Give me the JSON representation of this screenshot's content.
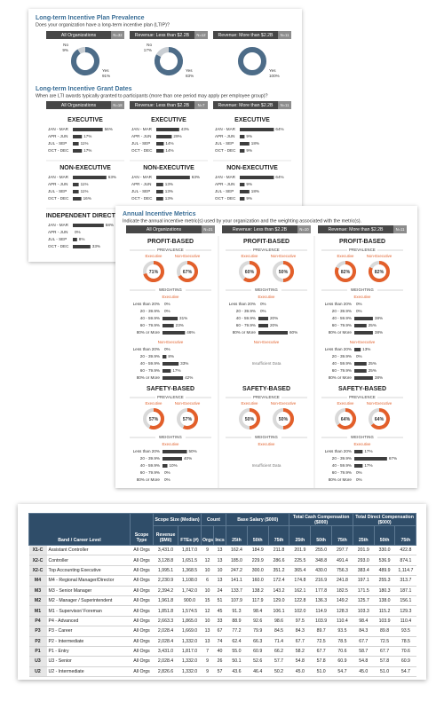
{
  "ltip": {
    "title": "Long-term Incentive Plan Prevalence",
    "question": "Does your organization have a long-term incentive plan (LTIP)?",
    "segments": [
      {
        "name": "All Organizations",
        "n": "N=32",
        "labels": [
          "Yes",
          "No"
        ],
        "values": [
          91,
          9
        ],
        "value_labels": [
          "91%",
          "9%"
        ]
      },
      {
        "name": "Revenue: Less than $2.2B",
        "n": "N=12",
        "labels": [
          "Yes",
          "No"
        ],
        "values": [
          83,
          17
        ],
        "value_labels": [
          "83%",
          "17%"
        ]
      },
      {
        "name": "Revenue: More than $2.2B",
        "n": "N=11",
        "labels": [
          "Yes"
        ],
        "values": [
          100
        ],
        "value_labels": [
          "100%"
        ]
      }
    ]
  },
  "grant": {
    "title": "Long-term Incentive Grant Dates",
    "question": "When are LTI awards typically granted to participants (more than one period may apply per employee group)?",
    "segments": [
      {
        "name": "All Organizations",
        "n": "N=18"
      },
      {
        "name": "Revenue: Less than $2.2B",
        "n": "N=7"
      },
      {
        "name": "Revenue: More than $2.2B",
        "n": "N=11"
      }
    ],
    "periods": [
      "JAN - MAR",
      "APR - JUN",
      "JUL - SEP",
      "OCT - DEC"
    ],
    "groups": [
      {
        "name": "EXECUTIVE",
        "panels": [
          {
            "values": [
              56,
              17,
              11,
              17
            ],
            "value_labels": [
              "56%",
              "17%",
              "11%",
              "17%"
            ]
          },
          {
            "values": [
              43,
              29,
              14,
              14
            ],
            "value_labels": [
              "43%",
              "29%",
              "14%",
              "14%"
            ]
          },
          {
            "values": [
              64,
              9,
              18,
              9
            ],
            "value_labels": [
              "64%",
              "9%",
              "18%",
              "9%"
            ]
          }
        ]
      },
      {
        "name": "NON-EXECUTIVE",
        "panels": [
          {
            "values": [
              63,
              11,
              11,
              16
            ],
            "value_labels": [
              "63%",
              "11%",
              "11%",
              "16%"
            ]
          },
          {
            "values": [
              63,
              13,
              13,
              13
            ],
            "value_labels": [
              "63%",
              "13%",
              "13%",
              "13%"
            ]
          },
          {
            "values": [
              64,
              9,
              18,
              9
            ],
            "value_labels": [
              "64%",
              "9%",
              "18%",
              "9%"
            ]
          }
        ]
      },
      {
        "name": "INDEPENDENT DIRECTOR",
        "panels": [
          {
            "values": [
              58,
              0,
              8,
              33
            ],
            "value_labels": [
              "58%",
              "0%",
              "8%",
              "33%"
            ]
          }
        ]
      }
    ]
  },
  "aim": {
    "title": "Annual Incentive Metrics",
    "question": "Indicate the annual incentive metric(s) used by your organization and the weighting associated with the metric(s).",
    "segments": [
      {
        "name": "All Organizations",
        "n": "N=21"
      },
      {
        "name": "Revenue: Less than $2.2B",
        "n": "N=10"
      },
      {
        "name": "Revenue: More than $2.2B",
        "n": "N=11"
      }
    ],
    "prevalence_label": "PREVALENCE",
    "weighting_label": "WEIGHTING",
    "roles": [
      "Executive",
      "Non-Executive"
    ],
    "ranges": [
      "Less than 20%",
      "20 - 39.9%",
      "40 - 59.9%",
      "60 - 79.9%",
      "80% or More"
    ],
    "insufficient": "Insufficient Data",
    "metrics": [
      {
        "name": "PROFIT-BASED",
        "panels": [
          {
            "prevalence": [
              71,
              67
            ],
            "prevalence_labels": [
              "71%",
              "67%"
            ],
            "weighting": [
              {
                "values": [
                  0,
                  0,
                  31,
                  23,
                  46
                ],
                "value_labels": [
                  "0%",
                  "0%",
                  "31%",
                  "23%",
                  "46%"
                ]
              },
              {
                "values": [
                  0,
                  8,
                  33,
                  17,
                  42
                ],
                "value_labels": [
                  "0%",
                  "8%",
                  "33%",
                  "17%",
                  "42%"
                ]
              }
            ]
          },
          {
            "prevalence": [
              60,
              50
            ],
            "prevalence_labels": [
              "60%",
              "50%"
            ],
            "weighting": [
              {
                "values": [
                  0,
                  0,
                  20,
                  20,
                  60
                ],
                "value_labels": [
                  "0%",
                  "0%",
                  "20%",
                  "20%",
                  "60%"
                ]
              },
              null
            ]
          },
          {
            "prevalence": [
              82,
              82
            ],
            "prevalence_labels": [
              "82%",
              "82%"
            ],
            "weighting": [
              {
                "values": [
                  0,
                  0,
                  38,
                  25,
                  38
                ],
                "value_labels": [
                  "0%",
                  "0%",
                  "38%",
                  "25%",
                  "38%"
                ]
              },
              {
                "values": [
                  13,
                  0,
                  25,
                  25,
                  38
                ],
                "value_labels": [
                  "13%",
                  "0%",
                  "25%",
                  "25%",
                  "38%"
                ]
              }
            ]
          }
        ]
      },
      {
        "name": "SAFETY-BASED",
        "panels": [
          {
            "prevalence": [
              57,
              57
            ],
            "prevalence_labels": [
              "57%",
              "57%"
            ],
            "weighting": [
              {
                "values": [
                  50,
                  40,
                  10,
                  0,
                  0
                ],
                "value_labels": [
                  "50%",
                  "40%",
                  "10%",
                  "0%",
                  "0%"
                ]
              }
            ]
          },
          {
            "prevalence": [
              50,
              50
            ],
            "prevalence_labels": [
              "50%",
              "50%"
            ],
            "weighting": [
              null
            ]
          },
          {
            "prevalence": [
              64,
              64
            ],
            "prevalence_labels": [
              "64%",
              "64%"
            ],
            "weighting": [
              {
                "values": [
                  17,
                  67,
                  17,
                  0,
                  0
                ],
                "value_labels": [
                  "17%",
                  "67%",
                  "17%",
                  "0%",
                  "0%"
                ]
              }
            ]
          }
        ]
      }
    ]
  },
  "table": {
    "header_groups": [
      "Scope Size (Median)",
      "Count",
      "Base Salary ($000)",
      "Total Cash Compensation ($000)",
      "Total Direct Compensation ($000)"
    ],
    "columns": [
      "Band / Career Level",
      "Scope Type",
      "Revenue ($Mil)",
      "FTEs (#)",
      "Orgs",
      "Incs",
      "25th",
      "50th",
      "75th",
      "25th",
      "50th",
      "75th",
      "25th",
      "50th",
      "75th"
    ],
    "groups": [
      [
        [
          "X1-C",
          "Assistant Controller",
          "All Orgs",
          "3,431.0",
          "1,817.0",
          "9",
          "13",
          "162.4",
          "184.9",
          "211.8",
          "201.9",
          "255.0",
          "297.7",
          "201.9",
          "330.0",
          "422.8"
        ],
        [
          "X2-C",
          "Controller",
          "All Orgs",
          "3,128.8",
          "1,651.5",
          "12",
          "13",
          "185.0",
          "229.9",
          "286.6",
          "225.5",
          "348.8",
          "491.4",
          "293.0",
          "536.9",
          "874.1"
        ],
        [
          "X2-C",
          "Top Accounting Executive",
          "All Orgs",
          "1,995.1",
          "1,368.5",
          "10",
          "10",
          "247.2",
          "300.0",
          "351.2",
          "365.4",
          "430.0",
          "756.3",
          "383.4",
          "489.9",
          "1,114.7"
        ]
      ],
      [
        [
          "M4",
          "M4 - Regional Manager/Director",
          "All Orgs",
          "2,230.9",
          "1,108.0",
          "6",
          "13",
          "141.1",
          "160.0",
          "172.4",
          "174.8",
          "216.9",
          "241.8",
          "197.1",
          "255.3",
          "313.7"
        ],
        [
          "M3",
          "M3 - Senior Manager",
          "All Orgs",
          "2,394.2",
          "1,742.0",
          "10",
          "24",
          "133.7",
          "138.2",
          "143.2",
          "162.1",
          "177.8",
          "182.5",
          "171.5",
          "180.3",
          "187.1"
        ],
        [
          "M2",
          "M2 - Manager / Superintendent",
          "All Orgs",
          "1,961.8",
          "900.0",
          "15",
          "51",
          "107.9",
          "117.9",
          "129.0",
          "122.8",
          "136.3",
          "149.2",
          "125.7",
          "138.0",
          "156.1"
        ],
        [
          "M1",
          "M1 - Supervisor/ Foreman",
          "All Orgs",
          "1,851.8",
          "1,574.5",
          "12",
          "45",
          "91.3",
          "98.4",
          "106.1",
          "102.0",
          "114.9",
          "128.3",
          "103.3",
          "115.2",
          "129.3"
        ]
      ],
      [
        [
          "P4",
          "P4 - Advanced",
          "All Orgs",
          "2,663.3",
          "1,865.0",
          "10",
          "33",
          "88.9",
          "92.6",
          "98.6",
          "97.5",
          "103.9",
          "110.4",
          "98.4",
          "103.9",
          "110.4"
        ],
        [
          "P3",
          "P3 - Career",
          "All Orgs",
          "2,028.4",
          "1,669.0",
          "13",
          "67",
          "77.2",
          "79.9",
          "84.5",
          "84.3",
          "89.7",
          "93.5",
          "84.3",
          "89.8",
          "93.5"
        ],
        [
          "P2",
          "P2 - Intermediate",
          "All Orgs",
          "2,028.4",
          "1,332.0",
          "13",
          "74",
          "62.4",
          "66.3",
          "71.4",
          "67.7",
          "72.5",
          "78.5",
          "67.7",
          "72.5",
          "78.5"
        ],
        [
          "P1",
          "P1 - Entry",
          "All Orgs",
          "3,431.0",
          "1,817.0",
          "7",
          "40",
          "55.0",
          "60.9",
          "66.2",
          "58.2",
          "67.7",
          "70.6",
          "58.7",
          "67.7",
          "70.6"
        ]
      ],
      [
        [
          "U3",
          "U3 - Senior",
          "All Orgs",
          "2,028.4",
          "1,332.0",
          "9",
          "26",
          "50.1",
          "52.6",
          "57.7",
          "54.8",
          "57.8",
          "60.9",
          "54.8",
          "57.8",
          "60.9"
        ],
        [
          "U2",
          "U2 - Intermediate",
          "All Orgs",
          "2,826.6",
          "1,332.0",
          "9",
          "57",
          "43.6",
          "46.4",
          "50.2",
          "45.0",
          "51.0",
          "54.7",
          "45.0",
          "51.0",
          "54.7"
        ]
      ]
    ]
  }
}
